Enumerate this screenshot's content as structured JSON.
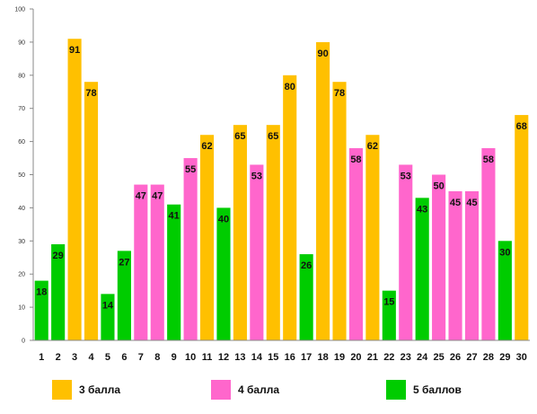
{
  "chart_data": {
    "type": "bar",
    "title": "",
    "xlabel": "",
    "ylabel": "",
    "ylim": [
      0,
      100
    ],
    "yticks": [
      "0",
      "10",
      "20",
      "30",
      "40",
      "50",
      "60",
      "70",
      "80",
      "90",
      "100"
    ],
    "grid": false,
    "legend_position": "bottom",
    "categories": [
      "1",
      "2",
      "3",
      "4",
      "5",
      "6",
      "7",
      "8",
      "9",
      "10",
      "11",
      "12",
      "13",
      "14",
      "15",
      "16",
      "17",
      "18",
      "19",
      "20",
      "21",
      "22",
      "23",
      "24",
      "25",
      "26",
      "27",
      "28",
      "29",
      "30"
    ],
    "values": [
      18,
      29,
      91,
      78,
      14,
      27,
      47,
      47,
      41,
      55,
      62,
      40,
      65,
      53,
      65,
      80,
      26,
      90,
      78,
      58,
      62,
      15,
      53,
      43,
      50,
      45,
      45,
      58,
      30,
      68
    ],
    "groups": [
      "5 баллов",
      "5 баллов",
      "3 балла",
      "3 балла",
      "5 баллов",
      "5 баллов",
      "4 балла",
      "4 балла",
      "5 баллов",
      "4 балла",
      "3 балла",
      "5 баллов",
      "3 балла",
      "4 балла",
      "3 балла",
      "3 балла",
      "5 баллов",
      "3 балла",
      "3 балла",
      "4 балла",
      "3 балла",
      "5 баллов",
      "4 балла",
      "5 баллов",
      "4 балла",
      "4 балла",
      "4 балла",
      "4 балла",
      "5 баллов",
      "3 балла"
    ],
    "series": [
      {
        "name": "3 балла",
        "color": "#FFC000"
      },
      {
        "name": "4 балла",
        "color": "#FF66CC"
      },
      {
        "name": "5 баллов",
        "color": "#00CC00"
      }
    ]
  },
  "legend": {
    "items": [
      {
        "label": "3 балла",
        "color": "#FFC000"
      },
      {
        "label": "4 балла",
        "color": "#FF66CC"
      },
      {
        "label": "5 баллов",
        "color": "#00CC00"
      }
    ]
  }
}
